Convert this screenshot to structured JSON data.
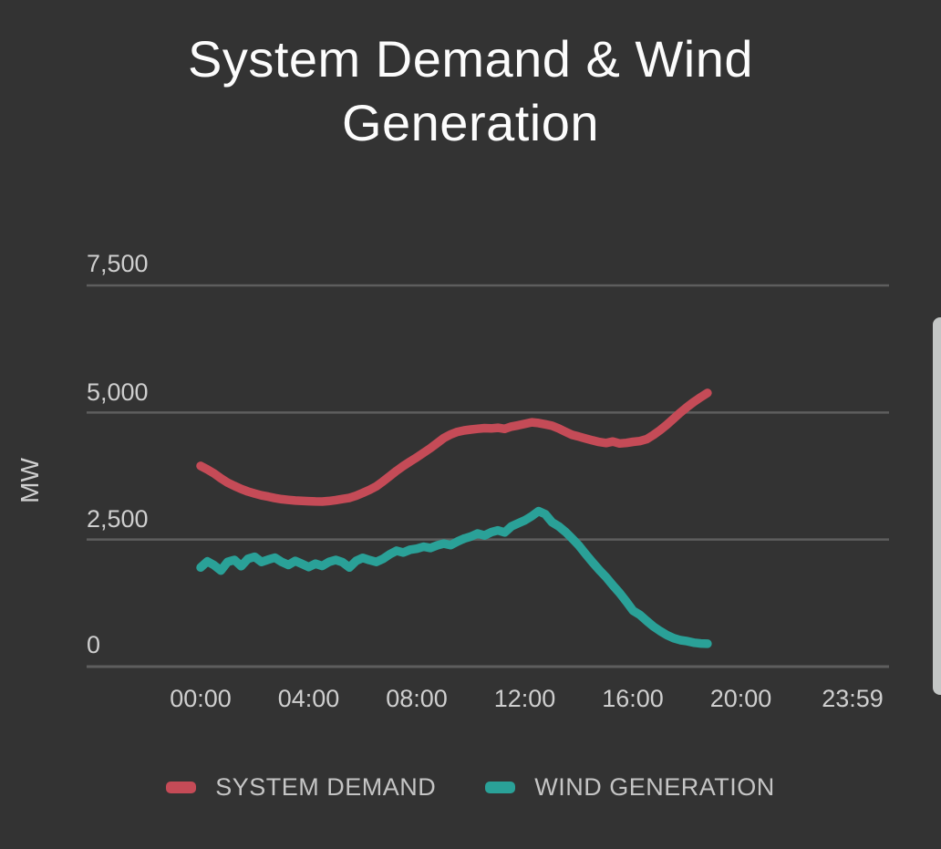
{
  "header": {
    "title": "System Demand & Wind Generation"
  },
  "colors": {
    "background": "#333333",
    "title_text": "#fcfcfc",
    "axis_text": "#cfcfcf",
    "legend_text": "#c5c5c5",
    "gridline": "#5e5e5e",
    "system_demand": "#c54b57",
    "wind_generation": "#2aa198",
    "scrollbar": "#c4c7c6"
  },
  "chart_data": {
    "type": "line",
    "title": "System Demand & Wind Generation",
    "xlabel": "",
    "ylabel": "MW",
    "ylim": [
      0,
      7500
    ],
    "grid": true,
    "legend_position": "bottom",
    "yticks": [
      7500,
      5000,
      2500,
      0
    ],
    "ytick_labels": [
      "7,500",
      "5,000",
      "2,500",
      "0"
    ],
    "xtick_hours": [
      0,
      4,
      8,
      12,
      16,
      20,
      23.983
    ],
    "xtick_labels": [
      "00:00",
      "04:00",
      "08:00",
      "12:00",
      "16:00",
      "20:00",
      "23:59"
    ],
    "x_hours": [
      0,
      0.25,
      0.5,
      0.75,
      1,
      1.25,
      1.5,
      1.75,
      2,
      2.25,
      2.5,
      2.75,
      3,
      3.25,
      3.5,
      3.75,
      4,
      4.25,
      4.5,
      4.75,
      5,
      5.25,
      5.5,
      5.75,
      6,
      6.25,
      6.5,
      6.75,
      7,
      7.25,
      7.5,
      7.75,
      8,
      8.25,
      8.5,
      8.75,
      9,
      9.25,
      9.5,
      9.75,
      10,
      10.25,
      10.5,
      10.75,
      11,
      11.25,
      11.5,
      11.75,
      12,
      12.25,
      12.5,
      12.75,
      13,
      13.25,
      13.5,
      13.75,
      14,
      14.25,
      14.5,
      14.75,
      15,
      15.25,
      15.5,
      15.75,
      16,
      16.25,
      16.5,
      16.75,
      17,
      17.25,
      17.5,
      17.75,
      18,
      18.25,
      18.5,
      18.75
    ],
    "series": [
      {
        "name": "SYSTEM DEMAND",
        "color": "#c54b57",
        "unit": "MW",
        "values": [
          3950,
          3880,
          3800,
          3705,
          3620,
          3555,
          3495,
          3445,
          3405,
          3370,
          3345,
          3315,
          3295,
          3280,
          3268,
          3260,
          3255,
          3250,
          3248,
          3258,
          3276,
          3298,
          3320,
          3362,
          3418,
          3478,
          3548,
          3645,
          3748,
          3852,
          3948,
          4035,
          4118,
          4208,
          4298,
          4398,
          4498,
          4568,
          4618,
          4648,
          4665,
          4680,
          4692,
          4686,
          4700,
          4678,
          4722,
          4748,
          4778,
          4806,
          4792,
          4768,
          4738,
          4685,
          4620,
          4560,
          4525,
          4488,
          4452,
          4420,
          4400,
          4428,
          4390,
          4402,
          4422,
          4438,
          4475,
          4558,
          4652,
          4760,
          4878,
          4998,
          5108,
          5208,
          5300,
          5385
        ]
      },
      {
        "name": "WIND GENERATION",
        "color": "#2aa198",
        "unit": "MW",
        "values": [
          1950,
          2070,
          1995,
          1890,
          2060,
          2100,
          1975,
          2120,
          2160,
          2060,
          2105,
          2145,
          2060,
          2000,
          2080,
          2020,
          1960,
          2025,
          1980,
          2060,
          2100,
          2055,
          1950,
          2080,
          2140,
          2095,
          2060,
          2120,
          2210,
          2280,
          2245,
          2300,
          2320,
          2360,
          2335,
          2385,
          2420,
          2390,
          2460,
          2520,
          2560,
          2620,
          2580,
          2645,
          2680,
          2640,
          2760,
          2820,
          2880,
          2960,
          3060,
          3000,
          2840,
          2760,
          2650,
          2520,
          2380,
          2210,
          2050,
          1900,
          1760,
          1600,
          1450,
          1280,
          1100,
          1020,
          900,
          790,
          700,
          620,
          560,
          520,
          500,
          470,
          455,
          450
        ]
      }
    ]
  }
}
